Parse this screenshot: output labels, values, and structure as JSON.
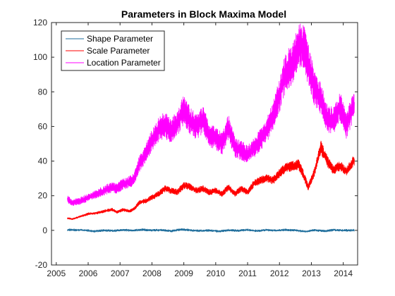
{
  "chart_data": {
    "type": "line",
    "title": "Parameters in Block Maxima Model",
    "xlabel": "",
    "ylabel": "",
    "xlim": [
      2004.85,
      2014.45
    ],
    "ylim": [
      -20,
      120
    ],
    "xticks": [
      2005,
      2006,
      2007,
      2008,
      2009,
      2010,
      2011,
      2012,
      2013,
      2014
    ],
    "yticks": [
      -20,
      0,
      20,
      40,
      60,
      80,
      100,
      120
    ],
    "grid": false,
    "legend_position": "top-left",
    "series": [
      {
        "name": "Shape Parameter",
        "color": "#1f6e9c",
        "x": [
          2005.35,
          2005.6,
          2005.9,
          2006.2,
          2006.5,
          2006.8,
          2007.1,
          2007.4,
          2007.7,
          2008.0,
          2008.3,
          2008.6,
          2008.9,
          2009.2,
          2009.5,
          2009.8,
          2010.1,
          2010.4,
          2010.7,
          2011.0,
          2011.3,
          2011.6,
          2011.9,
          2012.2,
          2012.5,
          2012.8,
          2013.1,
          2013.4,
          2013.7,
          2014.0,
          2014.35
        ],
        "y": [
          0.3,
          0.2,
          0.1,
          -0.5,
          0.0,
          -0.3,
          0.2,
          -0.1,
          0.4,
          0.0,
          0.2,
          -0.4,
          0.5,
          0.1,
          -0.3,
          0.0,
          -0.6,
          0.1,
          -0.2,
          0.3,
          -0.3,
          0.2,
          -0.1,
          0.3,
          0.0,
          -0.7,
          0.1,
          -0.4,
          0.2,
          0.0,
          0.1
        ]
      },
      {
        "name": "Scale Parameter",
        "color": "#ff0000",
        "x": [
          2005.35,
          2005.5,
          2005.75,
          2006.0,
          2006.25,
          2006.5,
          2006.75,
          2006.9,
          2007.1,
          2007.3,
          2007.45,
          2007.6,
          2007.8,
          2008.0,
          2008.2,
          2008.4,
          2008.6,
          2008.8,
          2009.0,
          2009.2,
          2009.4,
          2009.6,
          2009.8,
          2010.0,
          2010.2,
          2010.4,
          2010.6,
          2010.8,
          2011.0,
          2011.2,
          2011.4,
          2011.6,
          2011.8,
          2012.0,
          2012.2,
          2012.4,
          2012.6,
          2012.75,
          2012.9,
          2013.1,
          2013.3,
          2013.5,
          2013.7,
          2013.9,
          2014.1,
          2014.35
        ],
        "y": [
          7,
          6.5,
          8,
          9.5,
          10,
          11,
          12,
          10.5,
          12,
          11,
          12.5,
          16,
          17,
          19,
          21,
          24,
          23,
          22,
          26,
          25,
          23,
          24,
          22,
          23,
          21,
          25,
          21,
          24,
          22,
          27,
          29,
          30,
          29,
          33,
          36,
          37,
          38,
          32,
          25,
          34,
          48,
          40,
          35,
          37,
          34,
          41
        ]
      },
      {
        "name": "Location Parameter",
        "color": "#ff00ff",
        "x": [
          2005.35,
          2005.5,
          2005.75,
          2006.0,
          2006.25,
          2006.5,
          2006.75,
          2006.9,
          2007.1,
          2007.3,
          2007.45,
          2007.6,
          2007.8,
          2008.0,
          2008.2,
          2008.4,
          2008.6,
          2008.8,
          2009.0,
          2009.2,
          2009.4,
          2009.6,
          2009.8,
          2010.0,
          2010.2,
          2010.4,
          2010.6,
          2010.8,
          2011.0,
          2011.2,
          2011.4,
          2011.6,
          2011.8,
          2012.0,
          2012.2,
          2012.4,
          2012.6,
          2012.75,
          2012.9,
          2013.1,
          2013.3,
          2013.5,
          2013.7,
          2013.9,
          2014.1,
          2014.35
        ],
        "y": [
          18,
          16,
          17,
          19,
          21,
          23,
          25,
          24,
          27,
          28,
          30,
          38,
          44,
          52,
          58,
          61,
          57,
          62,
          70,
          63,
          60,
          64,
          55,
          53,
          50,
          60,
          48,
          46,
          44,
          48,
          52,
          58,
          66,
          78,
          92,
          96,
          108,
          106,
          96,
          82,
          76,
          64,
          64,
          72,
          60,
          74
        ]
      }
    ]
  }
}
